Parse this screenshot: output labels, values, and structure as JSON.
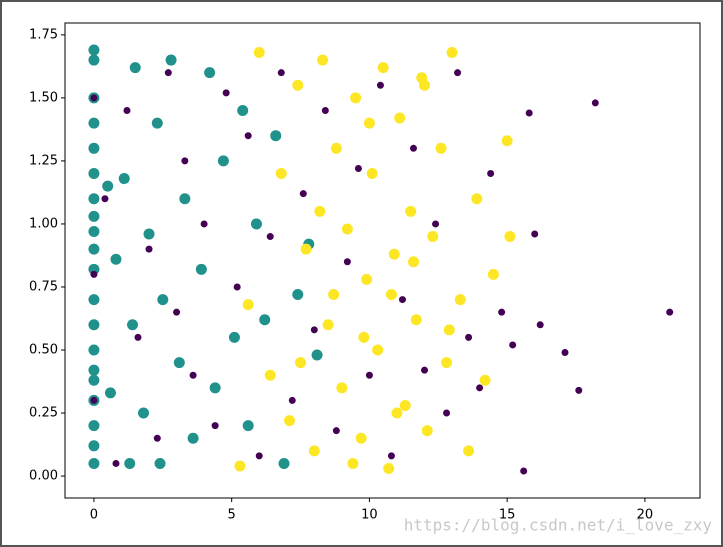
{
  "chart_data": {
    "type": "scatter",
    "annotation": "https://blog.csdn.net/i_love_zxy",
    "xlim": [
      -1.05,
      22.0
    ],
    "ylim": [
      -0.087,
      1.797
    ],
    "xticks": [
      0,
      5,
      10,
      15,
      20
    ],
    "yticks": [
      {
        "value": 0,
        "label": "0.00"
      },
      0.25,
      {
        "value": 0.5,
        "label": "0.50"
      },
      0.75,
      {
        "value": 1,
        "label": "1.00"
      },
      1.25,
      {
        "value": 1.5,
        "label": "1.50"
      },
      1.75
    ],
    "series": [
      {
        "color": "#21918c",
        "marker_size": 5.5,
        "x": [
          0,
          0,
          0,
          0,
          0,
          0,
          0,
          0,
          0,
          0,
          0,
          0,
          0,
          0,
          0,
          0,
          0,
          0,
          0,
          0,
          0.5,
          0.6,
          0.8,
          1.1,
          1.3,
          1.4,
          1.5,
          1.8,
          2.0,
          2.3,
          2.5,
          2.8,
          3.1,
          3.3,
          3.6,
          3.9,
          4.2,
          4.4,
          4.7,
          5.1,
          5.4,
          5.6,
          5.9,
          6.2,
          6.6,
          6.9,
          7.4,
          7.8,
          8.1,
          2.4
        ],
        "values": [
          1.69,
          1.65,
          1.5,
          1.4,
          1.3,
          1.2,
          1.1,
          1.03,
          0.9,
          0.82,
          0.7,
          0.6,
          0.5,
          0.42,
          0.3,
          0.2,
          0.12,
          0.05,
          0.97,
          0.38,
          1.15,
          0.33,
          0.86,
          1.18,
          0.05,
          0.6,
          1.62,
          0.25,
          0.96,
          1.4,
          0.7,
          1.65,
          0.45,
          1.1,
          0.15,
          0.82,
          1.6,
          0.35,
          1.25,
          0.55,
          1.45,
          0.2,
          1.0,
          0.62,
          1.35,
          0.05,
          0.72,
          0.92,
          0.48,
          0.05
        ]
      },
      {
        "color": "#fde725",
        "marker_size": 5.5,
        "x": [
          5.3,
          5.6,
          6.0,
          6.4,
          6.8,
          7.1,
          7.4,
          7.7,
          8.0,
          8.3,
          8.5,
          8.8,
          9.0,
          9.2,
          9.5,
          9.7,
          9.9,
          10.1,
          10.3,
          10.5,
          10.7,
          10.9,
          11.1,
          11.3,
          11.5,
          11.7,
          11.9,
          12.1,
          12.3,
          12.6,
          12.8,
          13.0,
          13.3,
          13.6,
          13.9,
          14.2,
          14.5,
          15.0,
          15.1,
          8.2,
          9.4,
          10.0,
          11.0,
          12.0,
          7.5,
          8.7,
          9.8,
          10.8,
          11.6,
          12.9
        ],
        "values": [
          0.04,
          0.68,
          1.68,
          0.4,
          1.2,
          0.22,
          1.55,
          0.9,
          0.1,
          1.65,
          0.6,
          1.3,
          0.35,
          0.98,
          1.5,
          0.15,
          0.78,
          1.2,
          0.5,
          1.62,
          0.03,
          0.88,
          1.42,
          0.28,
          1.05,
          0.62,
          1.58,
          0.18,
          0.95,
          1.3,
          0.45,
          1.68,
          0.7,
          0.1,
          1.1,
          0.38,
          0.8,
          1.33,
          0.95,
          1.05,
          0.05,
          1.4,
          0.25,
          1.55,
          0.45,
          0.72,
          0.55,
          0.72,
          0.85,
          0.58
        ]
      },
      {
        "color": "#440154",
        "marker_size": 3.5,
        "x": [
          0,
          0,
          0,
          0.4,
          0.8,
          1.2,
          1.6,
          2.0,
          2.3,
          2.7,
          3.0,
          3.3,
          3.6,
          4.0,
          4.4,
          4.8,
          5.2,
          5.6,
          6.0,
          6.4,
          6.8,
          7.2,
          7.6,
          8.0,
          8.4,
          8.8,
          9.2,
          9.6,
          10.0,
          10.4,
          10.8,
          11.2,
          11.6,
          12.0,
          12.4,
          12.8,
          13.2,
          13.6,
          14.0,
          14.4,
          14.8,
          15.2,
          15.6,
          15.8,
          16.0,
          16.2,
          17.1,
          17.6,
          18.2,
          20.9
        ],
        "values": [
          1.5,
          0.8,
          0.3,
          1.1,
          0.05,
          1.45,
          0.55,
          0.9,
          0.15,
          1.6,
          0.65,
          1.25,
          0.4,
          1.0,
          0.2,
          1.52,
          0.75,
          1.35,
          0.08,
          0.95,
          1.6,
          0.3,
          1.12,
          0.58,
          1.45,
          0.18,
          0.85,
          1.22,
          0.4,
          1.55,
          0.08,
          0.7,
          1.3,
          0.42,
          1.0,
          0.25,
          1.6,
          0.55,
          0.35,
          1.2,
          0.65,
          0.52,
          0.02,
          1.44,
          0.96,
          0.6,
          0.49,
          0.34,
          1.48,
          0.65
        ]
      }
    ]
  }
}
